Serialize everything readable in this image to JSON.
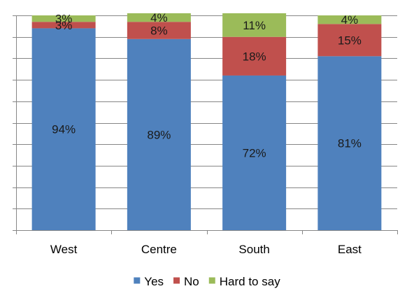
{
  "chart_data": {
    "type": "bar",
    "stacked": true,
    "categories": [
      "West",
      "Centre",
      "South",
      "East"
    ],
    "series": [
      {
        "name": "Yes",
        "color": "#4F81BD",
        "values": [
          94,
          89,
          72,
          81
        ],
        "labels": [
          "94%",
          "89%",
          "72%",
          "81%"
        ]
      },
      {
        "name": "No",
        "color": "#C0504D",
        "values": [
          3,
          8,
          18,
          15
        ],
        "labels": [
          "3%",
          "8%",
          "18%",
          "15%"
        ]
      },
      {
        "name": "Hard to say",
        "color": "#9BBB59",
        "values": [
          3,
          4,
          11,
          4
        ],
        "labels": [
          "3%",
          "4%",
          "11%",
          "4%"
        ]
      }
    ],
    "ylim": [
      0,
      100
    ],
    "gridlines": true,
    "y_tick_labels_shown": false,
    "legend_position": "bottom"
  }
}
